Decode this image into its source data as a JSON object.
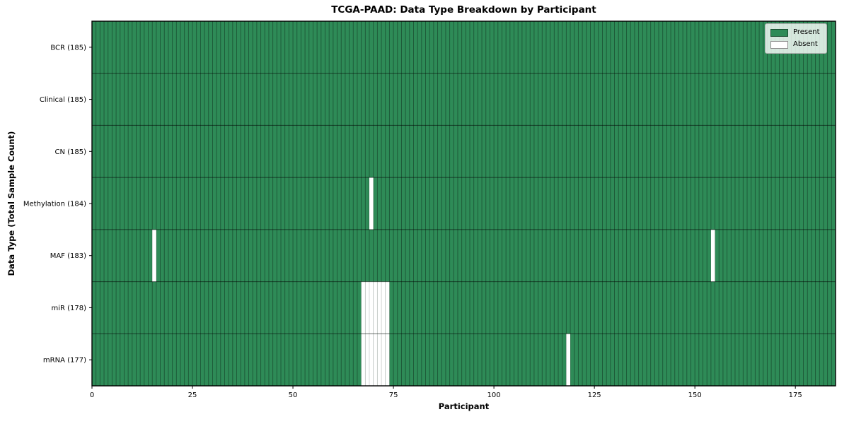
{
  "chart_data": {
    "type": "heatmap",
    "title": "TCGA-PAAD: Data Type Breakdown by Participant",
    "xlabel": "Participant",
    "ylabel": "Data Type (Total Sample Count)",
    "n_participants": 185,
    "x_range": [
      0,
      185
    ],
    "x_ticks": [
      0,
      25,
      50,
      75,
      100,
      125,
      150,
      175
    ],
    "grid": "off",
    "rows": [
      {
        "label": "BCR (185)",
        "data_type": "BCR",
        "total_samples": 185,
        "absent_participants": []
      },
      {
        "label": "Clinical (185)",
        "data_type": "Clinical",
        "total_samples": 185,
        "absent_participants": []
      },
      {
        "label": "CN (185)",
        "data_type": "CN",
        "total_samples": 185,
        "absent_participants": []
      },
      {
        "label": "Methylation (184)",
        "data_type": "Methylation",
        "total_samples": 184,
        "absent_participants": [
          69
        ]
      },
      {
        "label": "MAF (183)",
        "data_type": "MAF",
        "total_samples": 183,
        "absent_participants": [
          15,
          154
        ]
      },
      {
        "label": "miR (178)",
        "data_type": "miR",
        "total_samples": 178,
        "absent_participants": [
          67,
          68,
          69,
          70,
          71,
          72,
          73
        ]
      },
      {
        "label": "mRNA (177)",
        "data_type": "mRNA",
        "total_samples": 177,
        "absent_participants": [
          67,
          68,
          69,
          70,
          71,
          72,
          73,
          118
        ]
      }
    ],
    "legend": {
      "position": "upper right",
      "items": [
        {
          "label": "Present",
          "color": "#2e8b57"
        },
        {
          "label": "Absent",
          "color": "#ffffff"
        }
      ]
    },
    "colors": {
      "present": "#2e8b57",
      "absent": "#ffffff",
      "bar_edge": "rgba(0,0,0,0.38)",
      "absent_inner_edge": "rgba(0,0,0,0.16)",
      "row_separator": "rgba(0,0,0,0.55)",
      "spine": "#000000"
    }
  }
}
